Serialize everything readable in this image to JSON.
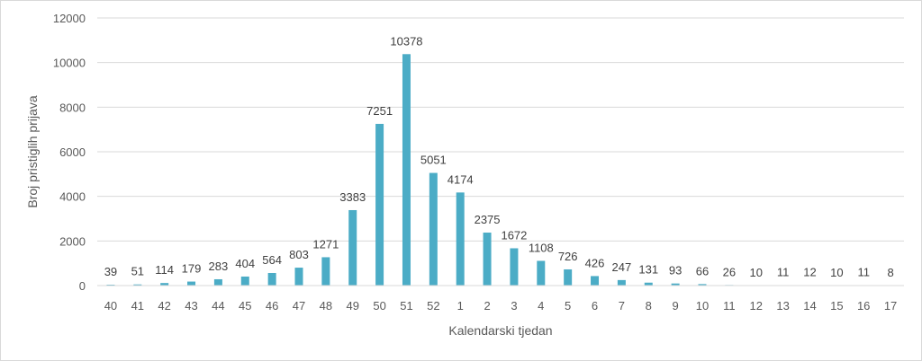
{
  "chart_data": {
    "type": "bar",
    "title": "",
    "xlabel": "Kalendarski tjedan",
    "ylabel": "Broj pristiglih prijava",
    "ylim": [
      0,
      12000
    ],
    "yticks": [
      0,
      2000,
      4000,
      6000,
      8000,
      10000,
      12000
    ],
    "grid": true,
    "legend": "none",
    "bar_color": "#4bacc6",
    "categories": [
      "40",
      "41",
      "42",
      "43",
      "44",
      "45",
      "46",
      "47",
      "48",
      "49",
      "50",
      "51",
      "52",
      "1",
      "2",
      "3",
      "4",
      "5",
      "6",
      "7",
      "8",
      "9",
      "10",
      "11",
      "12",
      "13",
      "14",
      "15",
      "16",
      "17"
    ],
    "values": [
      39,
      51,
      114,
      179,
      283,
      404,
      564,
      803,
      1271,
      3383,
      7251,
      10378,
      5051,
      4174,
      2375,
      1672,
      1108,
      726,
      426,
      247,
      131,
      93,
      66,
      26,
      10,
      11,
      12,
      10,
      11,
      8
    ]
  }
}
